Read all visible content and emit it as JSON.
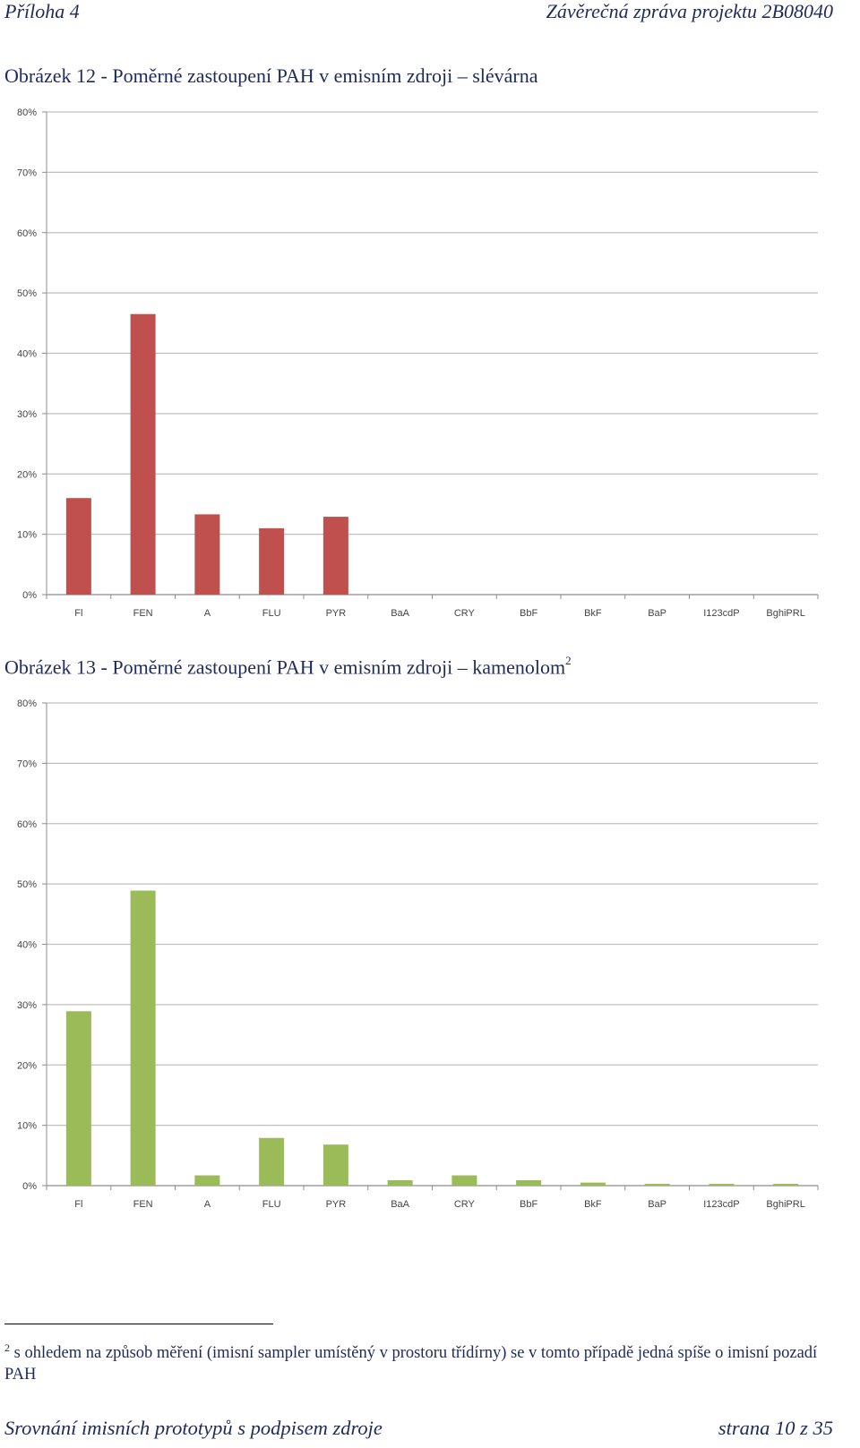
{
  "header": {
    "left": "Příloha 4",
    "right": "Závěrečná zpráva projektu 2B08040"
  },
  "figure1": {
    "title": "Obrázek 12 - Poměrné zastoupení PAH v emisním zdroji – slévárna"
  },
  "figure2": {
    "title": "Obrázek 13 - Poměrné zastoupení PAH v emisním zdroji – kamenolom",
    "footnote_ref": "2"
  },
  "chart_data": [
    {
      "type": "bar",
      "title": "",
      "xlabel": "",
      "ylabel": "",
      "ylim": [
        0,
        80
      ],
      "y_ticks": [
        "0%",
        "10%",
        "20%",
        "30%",
        "40%",
        "50%",
        "60%",
        "70%",
        "80%"
      ],
      "categories": [
        "Fl",
        "FEN",
        "A",
        "FLU",
        "PYR",
        "BaA",
        "CRY",
        "BbF",
        "BkF",
        "BaP",
        "I123cdP",
        "BghiPRL"
      ],
      "values": [
        16,
        46.5,
        13.3,
        11,
        12.9,
        0,
        0,
        0,
        0,
        0,
        0,
        0
      ],
      "bar_color": "#c0504d",
      "grid": true
    },
    {
      "type": "bar",
      "title": "",
      "xlabel": "",
      "ylabel": "",
      "ylim": [
        0,
        80
      ],
      "y_ticks": [
        "0%",
        "10%",
        "20%",
        "30%",
        "40%",
        "50%",
        "60%",
        "70%",
        "80%"
      ],
      "categories": [
        "Fl",
        "FEN",
        "A",
        "FLU",
        "PYR",
        "BaA",
        "CRY",
        "BbF",
        "BkF",
        "BaP",
        "I123cdP",
        "BghiPRL"
      ],
      "values": [
        28.9,
        48.9,
        1.7,
        7.9,
        6.8,
        0.9,
        1.7,
        0.9,
        0.5,
        0.3,
        0.3,
        0.3
      ],
      "bar_color": "#9bbb59",
      "grid": true
    }
  ],
  "footnote": {
    "mark": "2",
    "text": " s ohledem na způsob měření (imisní sampler umístěný v prostoru třídírny) se v tomto případě jedná spíše o imisní pozadí PAH"
  },
  "footer": {
    "left": "Srovnání imisních prototypů s podpisem zdroje",
    "right": "strana 10 z 35"
  }
}
